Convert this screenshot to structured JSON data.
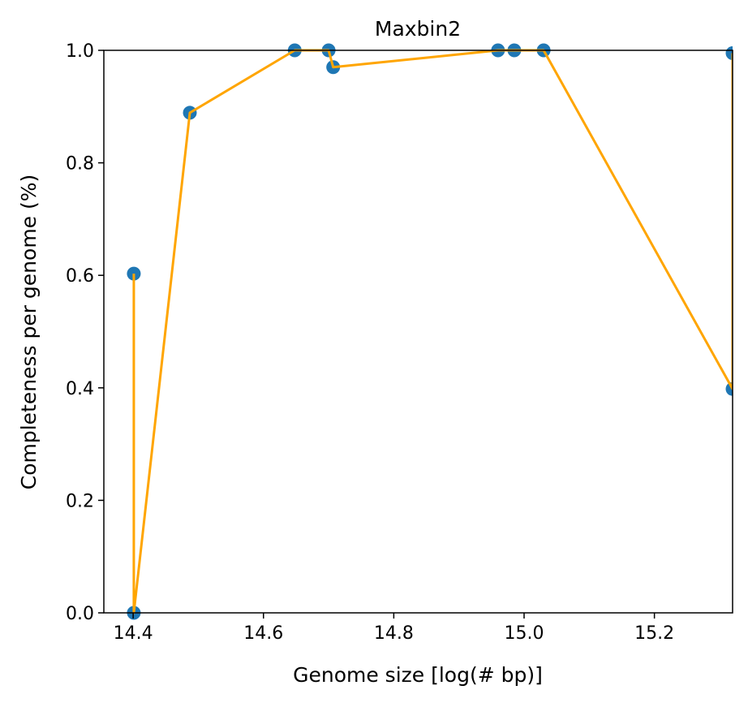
{
  "chart_data": {
    "type": "scatter",
    "title": "Maxbin2",
    "xlabel": "Genome size [log(# bp)]",
    "ylabel": "Completeness per genome (%)",
    "xlim": [
      14.355,
      15.32
    ],
    "ylim": [
      0.0,
      1.0
    ],
    "xticks": [
      14.4,
      14.6,
      14.8,
      15.0,
      15.2
    ],
    "xtick_labels": [
      "14.4",
      "14.6",
      "14.8",
      "15.0",
      "15.2"
    ],
    "yticks": [
      0.0,
      0.2,
      0.4,
      0.6,
      0.8,
      1.0
    ],
    "ytick_labels": [
      "0.0",
      "0.2",
      "0.4",
      "0.6",
      "0.8",
      "1.0"
    ],
    "grid": false,
    "series": [
      {
        "kind": "points",
        "color": "#1f77b4",
        "x": [
          14.401,
          14.401,
          14.487,
          14.648,
          14.7,
          14.707,
          14.96,
          14.985,
          15.03,
          15.32,
          15.32
        ],
        "y": [
          0.603,
          0.0,
          0.889,
          1.0,
          1.0,
          0.97,
          1.0,
          1.0,
          1.0,
          0.398,
          0.995
        ]
      },
      {
        "kind": "line",
        "color": "#ffa500",
        "x": [
          14.401,
          14.401,
          14.487,
          14.648,
          14.7,
          14.707,
          14.96,
          14.985,
          15.03,
          15.32,
          15.32
        ],
        "y": [
          0.603,
          0.0,
          0.889,
          1.0,
          1.0,
          0.97,
          1.0,
          1.0,
          1.0,
          0.398,
          0.995
        ]
      }
    ]
  }
}
